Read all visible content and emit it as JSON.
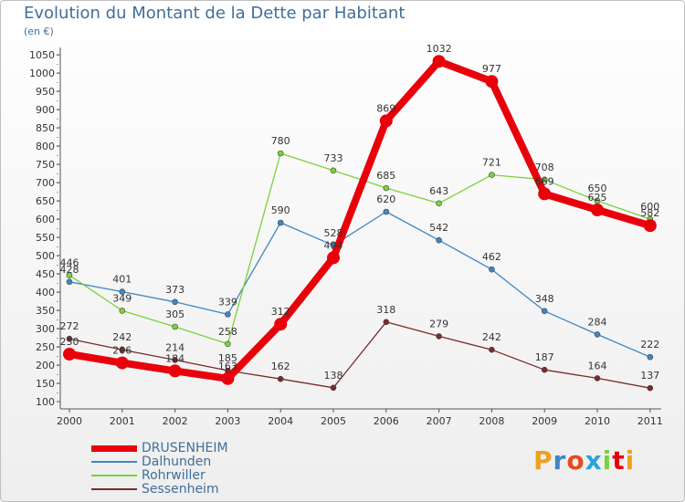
{
  "chart_data": {
    "type": "line",
    "title": "Evolution du Montant de la Dette par Habitant",
    "subtitle": "(en €)",
    "categories": [
      "2000",
      "2001",
      "2002",
      "2003",
      "2004",
      "2005",
      "2006",
      "2007",
      "2008",
      "2009",
      "2010",
      "2011"
    ],
    "ylim": [
      100,
      1050
    ],
    "yticks": [
      100,
      150,
      200,
      250,
      300,
      350,
      400,
      450,
      500,
      550,
      600,
      650,
      700,
      750,
      800,
      850,
      900,
      950,
      1000,
      1050
    ],
    "grid": false,
    "legend_position": "bottom-left",
    "series": [
      {
        "name": "DRUSENHEIM",
        "color": "#e8000b",
        "values": [
          230,
          206,
          184,
          163,
          312,
          494,
          869,
          1032,
          977,
          669,
          625,
          582
        ]
      },
      {
        "name": "Dalhunden",
        "color": "#3f86c4",
        "values": [
          428,
          401,
          373,
          339,
          590,
          528,
          620,
          542,
          462,
          348,
          284,
          222
        ]
      },
      {
        "name": "Rohrwiller",
        "color": "#7ad23a",
        "values": [
          446,
          349,
          305,
          258,
          780,
          733,
          685,
          643,
          721,
          708,
          650,
          600
        ]
      },
      {
        "name": "Sessenheim",
        "color": "#7a2a2a",
        "values": [
          272,
          242,
          214,
          185,
          162,
          138,
          318,
          279,
          242,
          187,
          164,
          137
        ]
      }
    ]
  },
  "brand": {
    "text": "Proxiti"
  }
}
